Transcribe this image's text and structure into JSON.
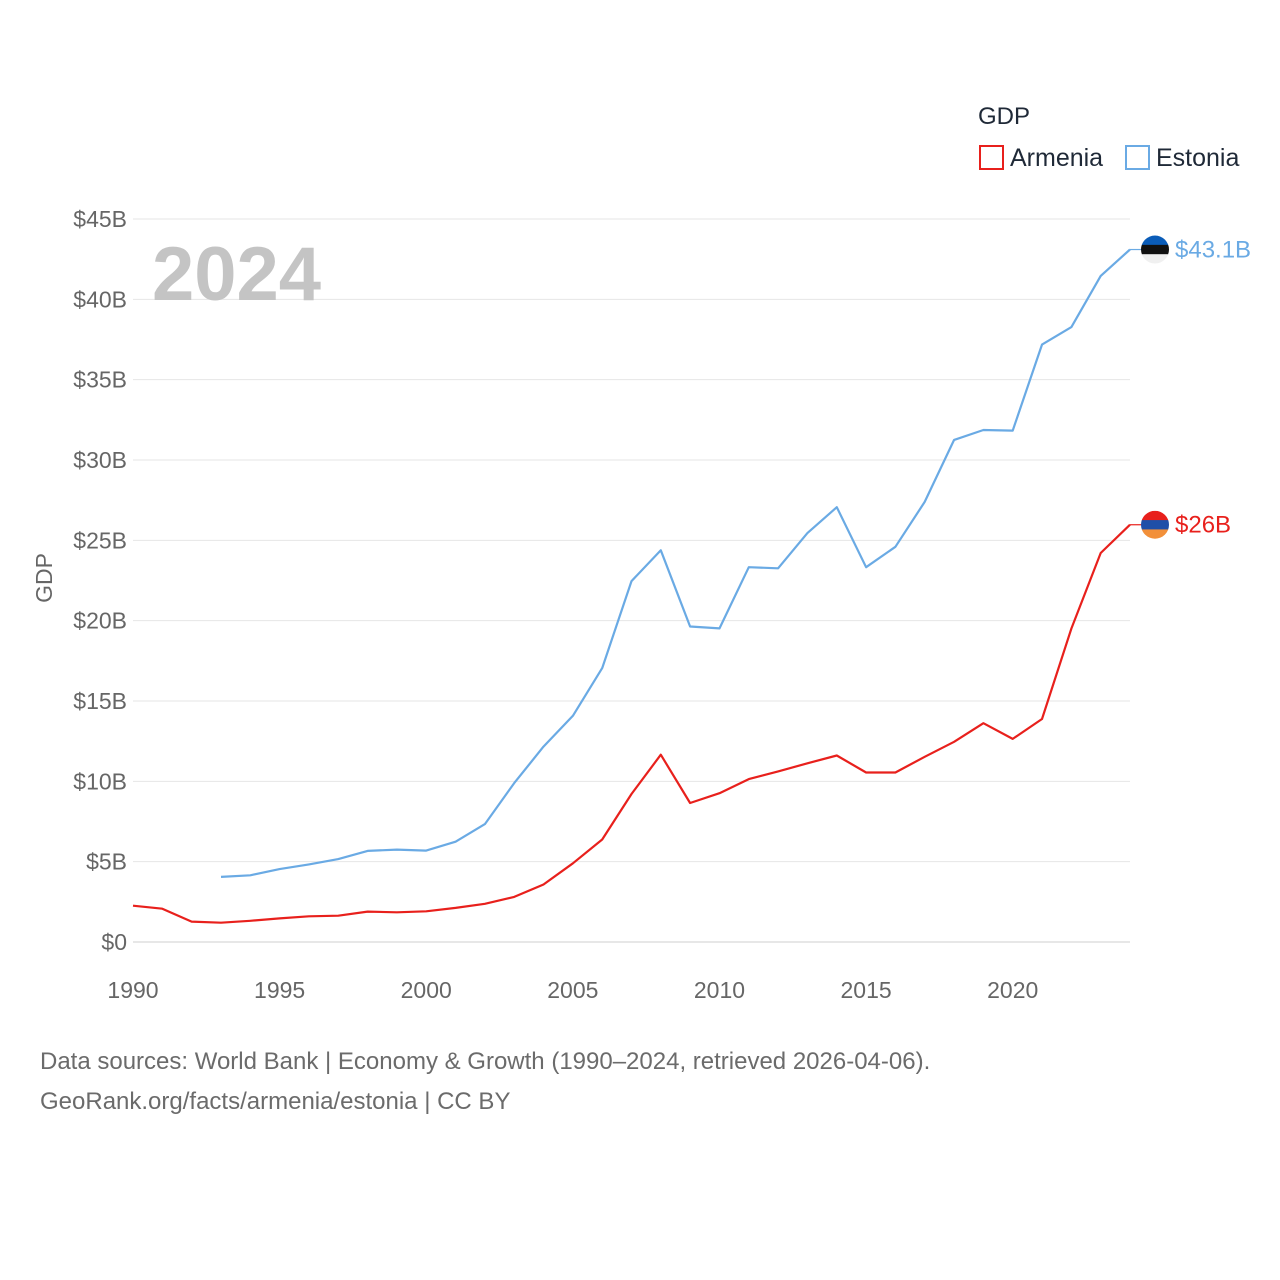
{
  "chart_data": {
    "type": "line",
    "title": "GDP",
    "current_year": "2024",
    "ylabel": "GDP",
    "xlabel": "",
    "xlim": [
      1990,
      2024
    ],
    "ylim": [
      0,
      45
    ],
    "x_ticks": [
      1990,
      1995,
      2000,
      2005,
      2010,
      2015,
      2020
    ],
    "y_ticks": [
      0,
      5,
      10,
      15,
      20,
      25,
      30,
      35,
      40,
      45
    ],
    "y_tick_labels": [
      "$0",
      "$5B",
      "$10B",
      "$15B",
      "$20B",
      "$25B",
      "$30B",
      "$35B",
      "$40B",
      "$45B"
    ],
    "legend": {
      "title": "GDP",
      "placement": "top-right"
    },
    "series": [
      {
        "name": "Armenia",
        "color": "#e8201c",
        "end_label": "$26B",
        "flag_colors": [
          "#e8201c",
          "#1f4fa8",
          "#f2903a"
        ],
        "points": [
          [
            1990,
            2.26
          ],
          [
            1991,
            2.07
          ],
          [
            1992,
            1.27
          ],
          [
            1993,
            1.2
          ],
          [
            1994,
            1.32
          ],
          [
            1995,
            1.47
          ],
          [
            1996,
            1.6
          ],
          [
            1997,
            1.64
          ],
          [
            1998,
            1.89
          ],
          [
            1999,
            1.85
          ],
          [
            2000,
            1.91
          ],
          [
            2001,
            2.12
          ],
          [
            2002,
            2.38
          ],
          [
            2003,
            2.81
          ],
          [
            2004,
            3.58
          ],
          [
            2005,
            4.9
          ],
          [
            2006,
            6.38
          ],
          [
            2007,
            9.21
          ],
          [
            2008,
            11.66
          ],
          [
            2009,
            8.65
          ],
          [
            2010,
            9.26
          ],
          [
            2011,
            10.14
          ],
          [
            2012,
            10.62
          ],
          [
            2013,
            11.12
          ],
          [
            2014,
            11.61
          ],
          [
            2015,
            10.55
          ],
          [
            2016,
            10.55
          ],
          [
            2017,
            11.53
          ],
          [
            2018,
            12.46
          ],
          [
            2019,
            13.62
          ],
          [
            2020,
            12.64
          ],
          [
            2021,
            13.88
          ],
          [
            2022,
            19.51
          ],
          [
            2023,
            24.21
          ],
          [
            2024,
            25.97
          ]
        ]
      },
      {
        "name": "Estonia",
        "color": "#6aaae4",
        "end_label": "$43.1B",
        "flag_colors": [
          "#0a5cb8",
          "#111111",
          "#f0f0f0"
        ],
        "points": [
          [
            1993,
            4.05
          ],
          [
            1994,
            4.15
          ],
          [
            1995,
            4.54
          ],
          [
            1996,
            4.83
          ],
          [
            1997,
            5.16
          ],
          [
            1998,
            5.67
          ],
          [
            1999,
            5.75
          ],
          [
            2000,
            5.69
          ],
          [
            2001,
            6.24
          ],
          [
            2002,
            7.34
          ],
          [
            2003,
            9.89
          ],
          [
            2004,
            12.16
          ],
          [
            2005,
            14.08
          ],
          [
            2006,
            17.05
          ],
          [
            2007,
            22.46
          ],
          [
            2008,
            24.38
          ],
          [
            2009,
            19.64
          ],
          [
            2010,
            19.52
          ],
          [
            2011,
            23.33
          ],
          [
            2012,
            23.26
          ],
          [
            2013,
            25.45
          ],
          [
            2014,
            27.06
          ],
          [
            2015,
            23.33
          ],
          [
            2016,
            24.6
          ],
          [
            2017,
            27.39
          ],
          [
            2018,
            31.25
          ],
          [
            2019,
            31.87
          ],
          [
            2020,
            31.83
          ],
          [
            2021,
            37.18
          ],
          [
            2022,
            38.27
          ],
          [
            2023,
            41.46
          ],
          [
            2024,
            43.1
          ]
        ]
      }
    ]
  },
  "footer": {
    "line1": "Data sources: World Bank | Economy & Growth (1990–2024, retrieved 2026-04-06).",
    "line2": "GeoRank.org/facts/armenia/estonia | CC BY"
  }
}
